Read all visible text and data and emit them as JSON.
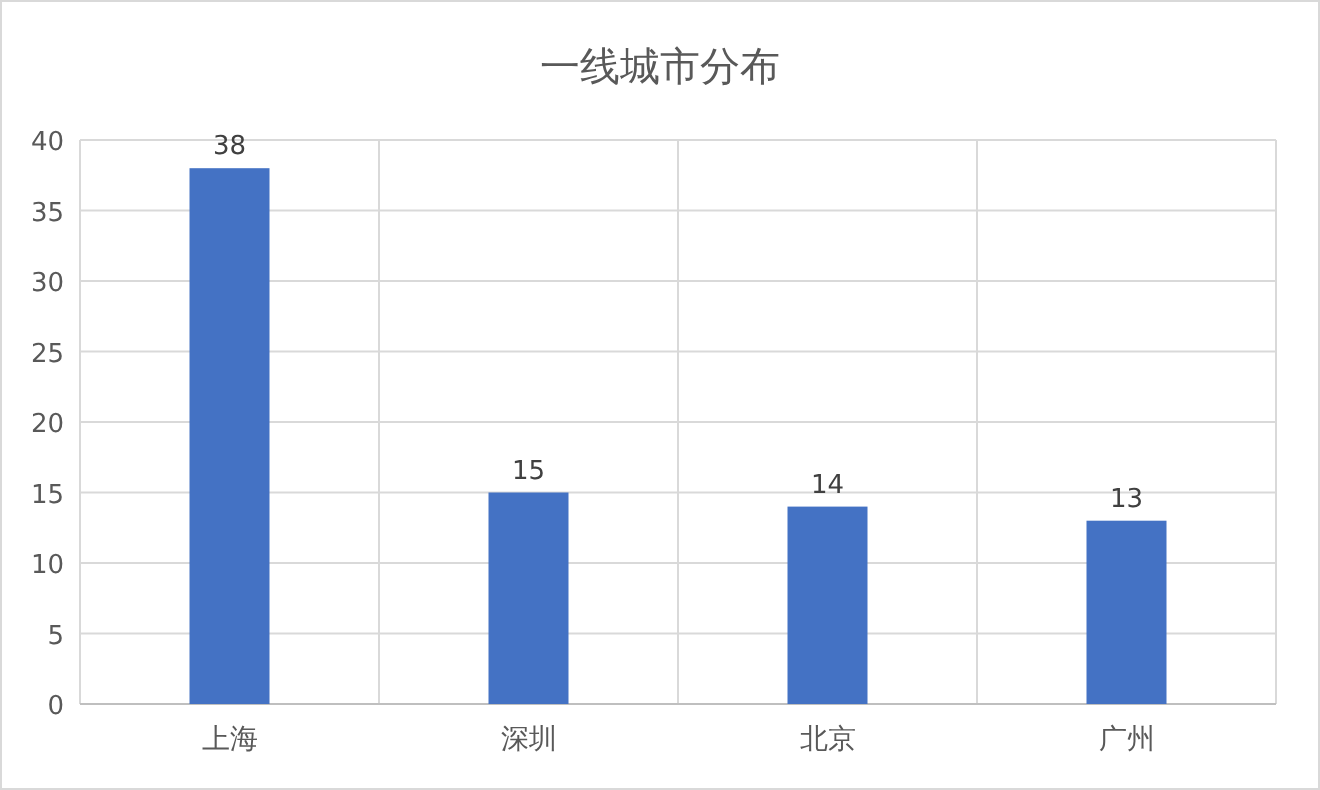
{
  "chart_data": {
    "type": "bar",
    "title": "一线城市分布",
    "categories": [
      "上海",
      "深圳",
      "北京",
      "广州"
    ],
    "values": [
      38,
      15,
      14,
      13
    ],
    "color": "#4472c4",
    "ylim": [
      0,
      40
    ],
    "yticks": [
      0,
      5,
      10,
      15,
      20,
      25,
      30,
      35,
      40
    ],
    "grid": true,
    "data_labels": true
  }
}
